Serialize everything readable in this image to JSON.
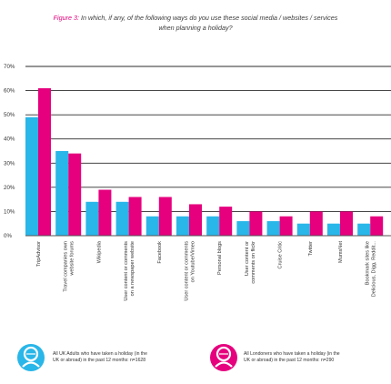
{
  "figure": {
    "number_label": "Figure 3:",
    "title_line1": "In which, if any, of the following ways do you use these social media / websites / services",
    "title_line2": "when planning a holiday?"
  },
  "chart_data": {
    "type": "bar",
    "categories": [
      [
        "TripAdvisor"
      ],
      [
        "Travel companies own",
        "website forums"
      ],
      [
        "Wikipedia"
      ],
      [
        "User content or comments",
        "on a newspaper website"
      ],
      [
        "Facebook"
      ],
      [
        "User content or comments",
        "on Youtube/Vimeo"
      ],
      [
        "Personal blogs"
      ],
      [
        "User content or",
        "comments on flickr"
      ],
      [
        "Cruise Critic"
      ],
      [
        "Twitter"
      ],
      [
        "MumsNet"
      ],
      [
        "Bookmark sites like",
        "Delicious, Digg, Reddit..."
      ]
    ],
    "series": [
      {
        "key": "uk",
        "color": "#29b6e8",
        "values": [
          49,
          35,
          14,
          14,
          8,
          8,
          8,
          6,
          6,
          5,
          5,
          5
        ]
      },
      {
        "key": "london",
        "color": "#e6007e",
        "values": [
          61,
          34,
          19,
          16,
          16,
          13,
          12,
          10,
          8,
          10,
          10,
          8
        ]
      }
    ],
    "y_ticks": [
      "0%",
      "10%",
      "20%",
      "30%",
      "40%",
      "50%",
      "60%",
      "70%"
    ],
    "ylim": [
      0,
      70
    ],
    "grid": true
  },
  "legend": {
    "uk_line1": "All UK Adults who have taken a holiday (in the",
    "uk_line2": "UK or abroad) in the past 12 months: n=1628",
    "london_line1": "All Londoners who have taken a holiday (in the",
    "london_line2": "UK or abroad) in the past 12 months: n=290",
    "uk_color": "#29b6e8",
    "london_color": "#e6007e",
    "uk_icon": "person-icon",
    "london_icon": "person-icon"
  }
}
